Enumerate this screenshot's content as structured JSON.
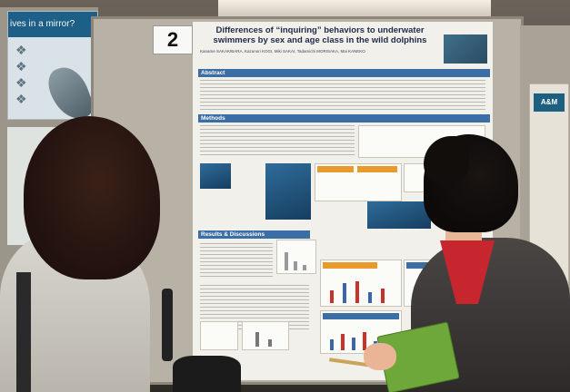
{
  "scene": {
    "left_poster_title": "ives in a mirror?",
    "board_number": "2",
    "main_poster": {
      "title_line1": "Differences of “inquiring” behaviors to underwater",
      "title_line2": "swimmers by sex and age class in the wild dolphins",
      "authors": "Kaname SAKAKIBARA, Kazunori KOGI, Miki SAKAI, Tadamichi MORISAKA, Mai KANEKO",
      "section_abstract": "Abstract",
      "section_methods": "Methods",
      "section_results": "Results & Discussions"
    },
    "right_poster_header": "A&M"
  }
}
